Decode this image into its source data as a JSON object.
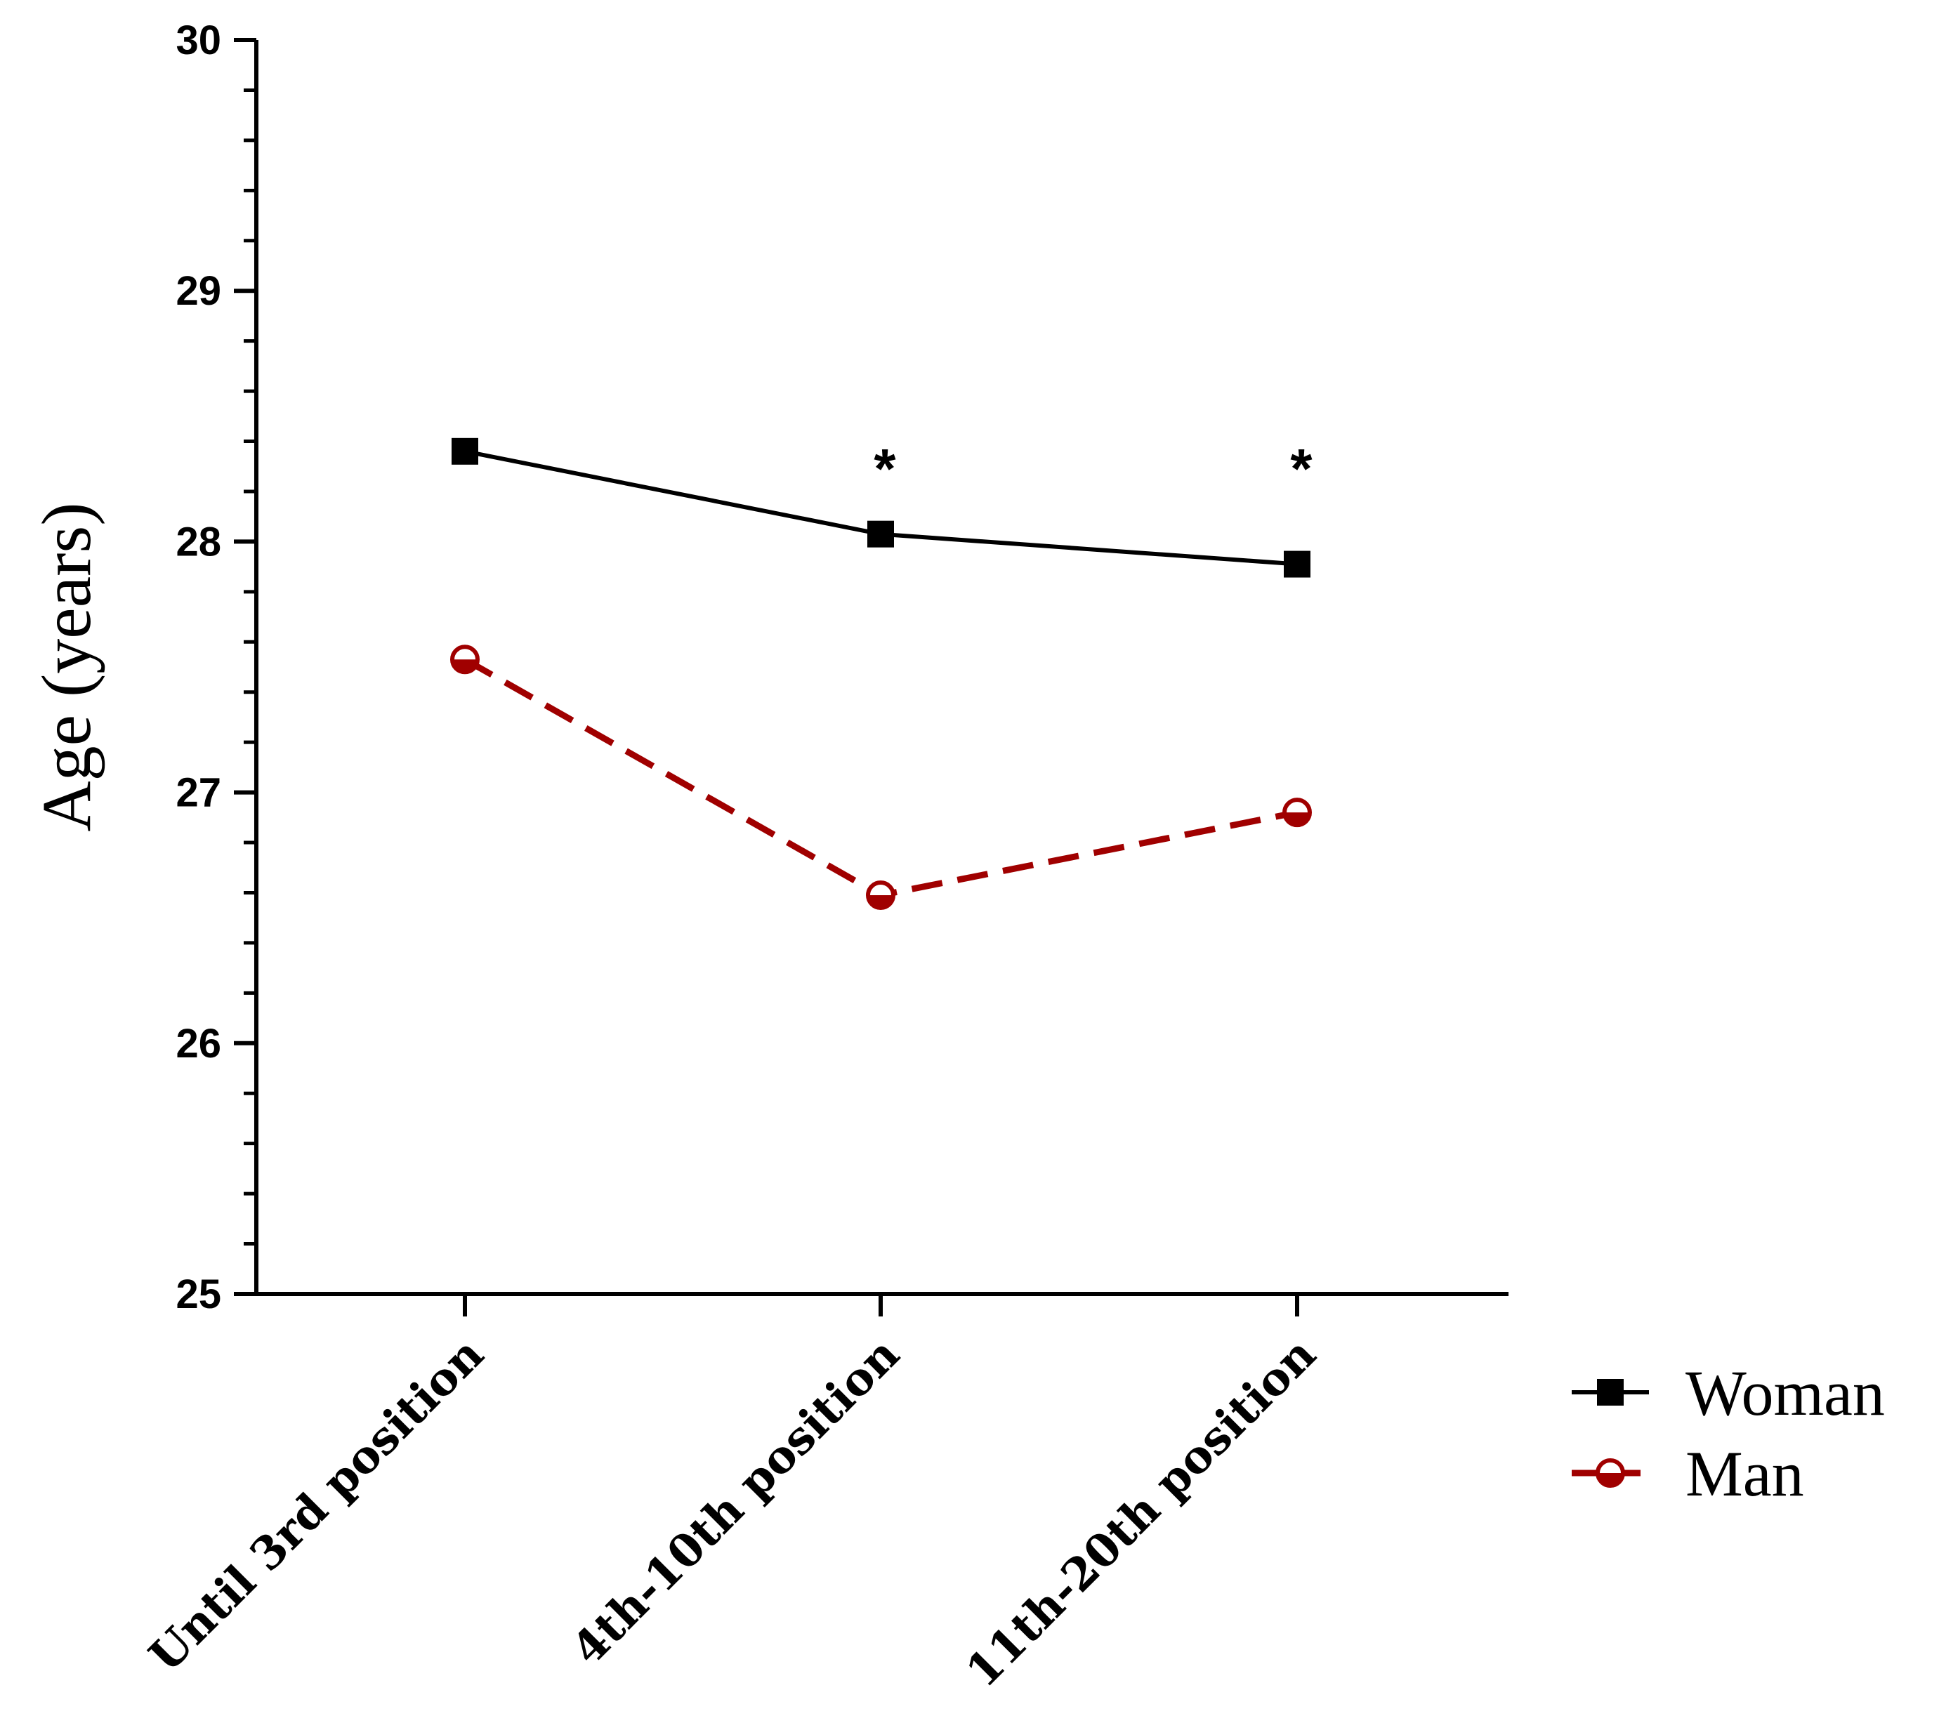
{
  "chart_data": {
    "type": "line",
    "title": "",
    "xlabel": "",
    "ylabel": "Age (years)",
    "ylim": [
      25,
      30
    ],
    "yticks": [
      25,
      26,
      27,
      28,
      29,
      30
    ],
    "categories": [
      "Until 3rd position",
      "4th-10th position",
      "11th-20th position"
    ],
    "series": [
      {
        "name": "Woman",
        "values": [
          28.36,
          28.03,
          27.91
        ],
        "color": "#000000",
        "marker": "square",
        "line": "solid"
      },
      {
        "name": "Man",
        "values": [
          27.53,
          26.59,
          26.92
        ],
        "color": "#a00000",
        "marker": "open-circle",
        "line": "dashed"
      }
    ],
    "annotations": [
      {
        "category": "4th-10th position",
        "text": "*"
      },
      {
        "category": "11th-20th position",
        "text": "*"
      }
    ],
    "legend": "right",
    "grid": false
  }
}
